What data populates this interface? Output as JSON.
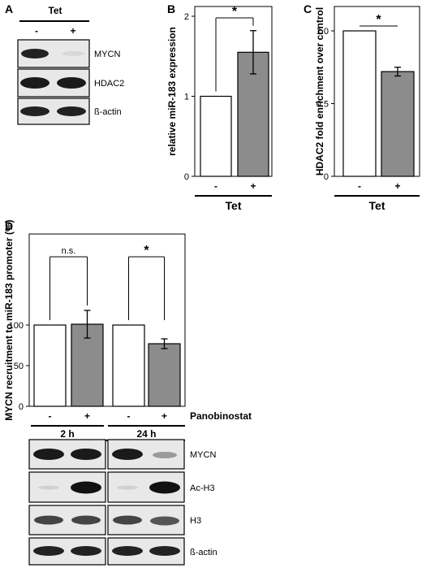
{
  "colors": {
    "bar_control": "#ffffff",
    "bar_treated": "#8c8c8c",
    "blot_bg": "#e8e8e8"
  },
  "panel_a": {
    "letter": "A",
    "group_label": "Tet",
    "lanes": [
      "-",
      "+"
    ],
    "rows": [
      "MYCN",
      "HDAC2",
      "ß-actin"
    ]
  },
  "chart_data": [
    {
      "panel": "B",
      "type": "bar",
      "categories": [
        "-",
        "+"
      ],
      "values": [
        1.0,
        1.55
      ],
      "errors": [
        0,
        0.27
      ],
      "ylabel": "relative miR-183 expression",
      "xlabel": "Tet",
      "ylim": [
        0,
        2
      ],
      "yticks": [
        "0",
        "1",
        "2"
      ],
      "significance": "*"
    },
    {
      "panel": "C",
      "type": "bar",
      "categories": [
        "-",
        "+"
      ],
      "values": [
        1.0,
        0.72
      ],
      "errors": [
        0,
        0.03
      ],
      "ylabel": "HDAC2 fold enrichment over control",
      "xlabel": "Tet",
      "ylim": [
        0,
        1.0
      ],
      "yticks": [
        "0",
        "0.5",
        "1.0"
      ],
      "significance": "*"
    },
    {
      "panel": "D",
      "type": "bar",
      "categories": [
        "-",
        "+",
        "-",
        "+"
      ],
      "groups": [
        "2 h",
        "24 h"
      ],
      "values": [
        100,
        101,
        100,
        77
      ],
      "errors": [
        0,
        17,
        0,
        6
      ],
      "ylabel": "MYCN recruitment to miR-183 promoter (%)",
      "xlabel": "Panobinostat",
      "ylim": [
        0,
        150
      ],
      "yticks": [
        "0",
        "50",
        "100"
      ],
      "significance": [
        "n.s.",
        "*"
      ]
    }
  ],
  "panel_d_blot": {
    "rows": [
      "MYCN",
      "Ac-H3",
      "H3",
      "ß-actin"
    ]
  }
}
